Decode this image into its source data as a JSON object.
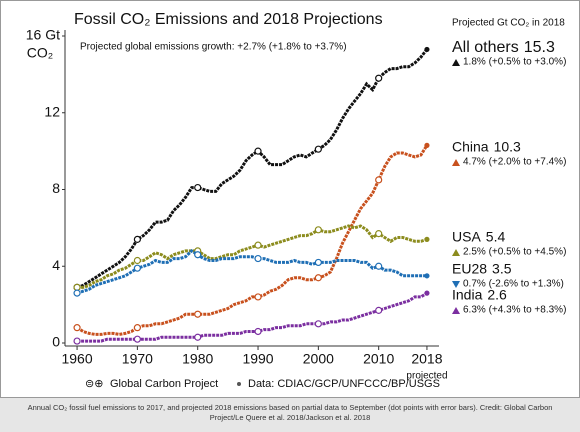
{
  "chart_data": {
    "type": "line",
    "title": "Fossil CO₂ Emissions and 2018 Projections",
    "subtitle": "Projected global emissions growth: +2.7% (+1.8% to +3.7%)",
    "y_label": "CO₂",
    "legend_title": "Projected Gt CO₂ in 2018",
    "x_annotation": "projected",
    "footer_source": "Global Carbon Project",
    "footer_data": "Data: CDIAC/GCP/UNFCCC/BP/USGS",
    "caption": "Annual CO₂ fossil fuel emissions to 2017, and projected 2018 emissions based on partial data to September (dot points with error bars). Credit: Global Carbon Project/Le Quere et al. 2018/Jackson et al. 2018",
    "xlim": [
      1958,
      2020
    ],
    "xticks": [
      1960,
      1970,
      1980,
      1990,
      2000,
      2010,
      2018
    ],
    "ylim": [
      0,
      16
    ],
    "yticks": [
      0,
      4,
      8,
      12,
      {
        "value": 16,
        "label": "16 Gt"
      }
    ],
    "x": [
      1960,
      1961,
      1962,
      1963,
      1964,
      1965,
      1966,
      1967,
      1968,
      1969,
      1970,
      1971,
      1972,
      1973,
      1974,
      1975,
      1976,
      1977,
      1978,
      1979,
      1980,
      1981,
      1982,
      1983,
      1984,
      1985,
      1986,
      1987,
      1988,
      1989,
      1990,
      1991,
      1992,
      1993,
      1994,
      1995,
      1996,
      1997,
      1998,
      1999,
      2000,
      2001,
      2002,
      2003,
      2004,
      2005,
      2006,
      2007,
      2008,
      2009,
      2010,
      2011,
      2012,
      2013,
      2014,
      2015,
      2016,
      2017,
      2018
    ],
    "series": [
      {
        "name": "All others",
        "color": "#111111",
        "growth": "1.8% (+0.5% to +3.0%)",
        "direction": "up",
        "values": [
          2.9,
          3.0,
          3.2,
          3.4,
          3.6,
          3.8,
          4.0,
          4.2,
          4.5,
          4.9,
          5.4,
          5.6,
          5.9,
          6.3,
          6.3,
          6.4,
          6.9,
          7.2,
          7.6,
          8.1,
          8.1,
          8.0,
          7.9,
          7.9,
          8.3,
          8.5,
          8.7,
          9.0,
          9.5,
          9.8,
          10.0,
          9.7,
          9.3,
          9.3,
          9.3,
          9.5,
          9.7,
          9.8,
          9.7,
          9.9,
          10.1,
          10.3,
          10.6,
          11.1,
          11.7,
          12.2,
          12.6,
          13.0,
          13.5,
          13.2,
          13.8,
          14.1,
          14.3,
          14.3,
          14.4,
          14.4,
          14.6,
          14.9,
          15.3
        ]
      },
      {
        "name": "China",
        "color": "#c8511e",
        "growth": "4.7% (+2.0% to +7.4%)",
        "direction": "up",
        "values": [
          0.8,
          0.6,
          0.5,
          0.45,
          0.45,
          0.5,
          0.5,
          0.45,
          0.5,
          0.6,
          0.8,
          0.9,
          0.9,
          1.0,
          1.0,
          1.1,
          1.2,
          1.3,
          1.5,
          1.5,
          1.5,
          1.5,
          1.5,
          1.6,
          1.7,
          1.8,
          2.0,
          2.1,
          2.2,
          2.4,
          2.4,
          2.5,
          2.7,
          2.8,
          3.0,
          3.3,
          3.4,
          3.4,
          3.3,
          3.3,
          3.4,
          3.5,
          3.7,
          4.4,
          5.2,
          5.8,
          6.4,
          7.0,
          7.4,
          7.8,
          8.5,
          9.2,
          9.7,
          9.9,
          9.9,
          9.8,
          9.7,
          9.8,
          10.3
        ]
      },
      {
        "name": "USA",
        "color": "#8c8c1e",
        "growth": "2.5% (+0.5% to +4.5%)",
        "direction": "up",
        "values": [
          2.9,
          2.9,
          3.0,
          3.2,
          3.3,
          3.5,
          3.6,
          3.8,
          3.9,
          4.1,
          4.3,
          4.3,
          4.5,
          4.7,
          4.6,
          4.4,
          4.6,
          4.7,
          4.8,
          4.8,
          4.8,
          4.6,
          4.4,
          4.4,
          4.5,
          4.6,
          4.6,
          4.8,
          4.9,
          5.0,
          5.1,
          5.0,
          5.1,
          5.2,
          5.3,
          5.4,
          5.5,
          5.6,
          5.6,
          5.7,
          5.9,
          5.8,
          5.8,
          5.9,
          6.0,
          6.1,
          6.0,
          6.1,
          5.9,
          5.5,
          5.7,
          5.5,
          5.3,
          5.5,
          5.5,
          5.4,
          5.3,
          5.3,
          5.4
        ]
      },
      {
        "name": "EU28",
        "color": "#1f6fb5",
        "growth": "0.7% (-2.6% to +1.3%)",
        "direction": "down",
        "values": [
          2.6,
          2.7,
          2.8,
          3.0,
          3.1,
          3.2,
          3.3,
          3.4,
          3.5,
          3.7,
          3.9,
          4.0,
          4.1,
          4.3,
          4.2,
          4.2,
          4.4,
          4.4,
          4.5,
          4.8,
          4.6,
          4.4,
          4.3,
          4.3,
          4.4,
          4.4,
          4.4,
          4.5,
          4.5,
          4.5,
          4.4,
          4.4,
          4.3,
          4.2,
          4.2,
          4.2,
          4.3,
          4.2,
          4.2,
          4.1,
          4.2,
          4.2,
          4.2,
          4.3,
          4.3,
          4.3,
          4.3,
          4.2,
          4.2,
          3.9,
          4.0,
          3.8,
          3.8,
          3.7,
          3.5,
          3.5,
          3.5,
          3.5,
          3.5
        ]
      },
      {
        "name": "India",
        "color": "#7b2fa0",
        "growth": "6.3% (+4.3% to +8.3%)",
        "direction": "up",
        "values": [
          0.1,
          0.1,
          0.1,
          0.1,
          0.1,
          0.2,
          0.2,
          0.2,
          0.2,
          0.2,
          0.2,
          0.2,
          0.2,
          0.2,
          0.3,
          0.3,
          0.3,
          0.3,
          0.3,
          0.3,
          0.3,
          0.4,
          0.4,
          0.4,
          0.4,
          0.5,
          0.5,
          0.5,
          0.6,
          0.6,
          0.6,
          0.7,
          0.7,
          0.8,
          0.8,
          0.9,
          0.9,
          0.9,
          1.0,
          1.0,
          1.0,
          1.0,
          1.1,
          1.1,
          1.2,
          1.2,
          1.3,
          1.4,
          1.5,
          1.6,
          1.7,
          1.8,
          1.9,
          2.0,
          2.1,
          2.2,
          2.4,
          2.4,
          2.6
        ]
      }
    ]
  }
}
